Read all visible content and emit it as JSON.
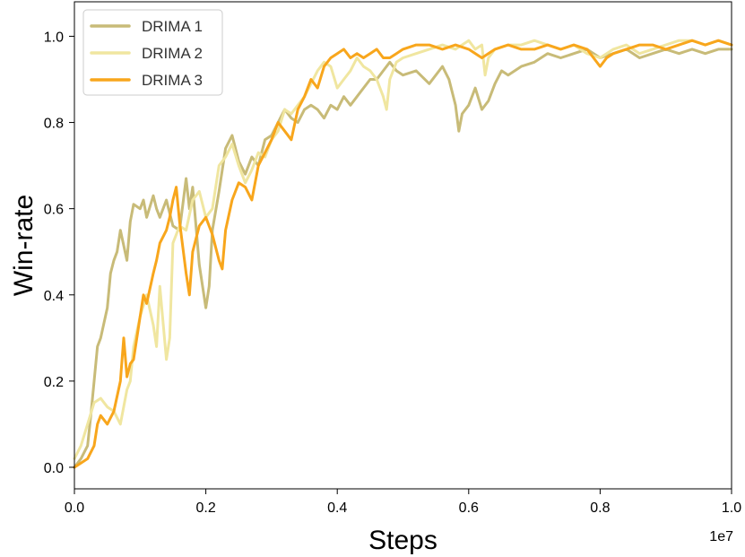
{
  "chart_data": {
    "type": "line",
    "title": "",
    "xlabel": "Steps",
    "ylabel": "Win-rate",
    "x_offset_label": "1e7",
    "xlim": [
      0.0,
      1.0
    ],
    "ylim": [
      -0.05,
      1.08
    ],
    "x_ticks": [
      "0.0",
      "0.2",
      "0.4",
      "0.6",
      "0.8",
      "1.0"
    ],
    "y_ticks": [
      "0.0",
      "0.2",
      "0.4",
      "0.6",
      "0.8",
      "1.0"
    ],
    "x_tick_values": [
      0.0,
      0.2,
      0.4,
      0.6,
      0.8,
      1.0
    ],
    "y_tick_values": [
      0.0,
      0.2,
      0.4,
      0.6,
      0.8,
      1.0
    ],
    "grid": false,
    "legend_position": "top-left",
    "series": [
      {
        "name": "DRIMA 1",
        "color": "#c8bb78",
        "x": [
          0.0,
          0.01,
          0.02,
          0.025,
          0.03,
          0.035,
          0.04,
          0.05,
          0.055,
          0.06,
          0.065,
          0.07,
          0.08,
          0.085,
          0.09,
          0.1,
          0.105,
          0.11,
          0.12,
          0.125,
          0.13,
          0.14,
          0.15,
          0.16,
          0.17,
          0.175,
          0.18,
          0.19,
          0.2,
          0.205,
          0.21,
          0.22,
          0.23,
          0.24,
          0.25,
          0.26,
          0.27,
          0.28,
          0.29,
          0.3,
          0.31,
          0.32,
          0.33,
          0.34,
          0.35,
          0.36,
          0.37,
          0.38,
          0.39,
          0.4,
          0.41,
          0.42,
          0.43,
          0.44,
          0.45,
          0.46,
          0.47,
          0.48,
          0.49,
          0.5,
          0.52,
          0.54,
          0.56,
          0.57,
          0.58,
          0.585,
          0.59,
          0.6,
          0.61,
          0.62,
          0.63,
          0.64,
          0.65,
          0.66,
          0.68,
          0.7,
          0.72,
          0.74,
          0.76,
          0.78,
          0.8,
          0.82,
          0.84,
          0.86,
          0.88,
          0.9,
          0.92,
          0.94,
          0.96,
          0.98,
          1.0
        ],
        "y": [
          0.0,
          0.02,
          0.05,
          0.12,
          0.2,
          0.28,
          0.3,
          0.37,
          0.45,
          0.48,
          0.5,
          0.55,
          0.48,
          0.57,
          0.61,
          0.6,
          0.62,
          0.58,
          0.63,
          0.6,
          0.58,
          0.62,
          0.56,
          0.55,
          0.67,
          0.6,
          0.65,
          0.47,
          0.37,
          0.42,
          0.55,
          0.64,
          0.74,
          0.77,
          0.71,
          0.68,
          0.72,
          0.7,
          0.76,
          0.77,
          0.8,
          0.83,
          0.81,
          0.8,
          0.83,
          0.84,
          0.83,
          0.81,
          0.84,
          0.83,
          0.86,
          0.84,
          0.86,
          0.88,
          0.9,
          0.9,
          0.92,
          0.94,
          0.92,
          0.91,
          0.92,
          0.89,
          0.93,
          0.9,
          0.84,
          0.78,
          0.82,
          0.84,
          0.88,
          0.83,
          0.85,
          0.89,
          0.92,
          0.91,
          0.93,
          0.94,
          0.96,
          0.95,
          0.96,
          0.97,
          0.95,
          0.96,
          0.97,
          0.95,
          0.96,
          0.97,
          0.96,
          0.97,
          0.96,
          0.97,
          0.97
        ]
      },
      {
        "name": "DRIMA 2",
        "color": "#f0e6a0",
        "x": [
          0.0,
          0.01,
          0.02,
          0.03,
          0.04,
          0.05,
          0.06,
          0.07,
          0.08,
          0.085,
          0.09,
          0.1,
          0.11,
          0.12,
          0.125,
          0.13,
          0.14,
          0.145,
          0.15,
          0.16,
          0.17,
          0.18,
          0.19,
          0.2,
          0.21,
          0.22,
          0.23,
          0.24,
          0.25,
          0.26,
          0.27,
          0.28,
          0.29,
          0.3,
          0.31,
          0.32,
          0.33,
          0.34,
          0.35,
          0.36,
          0.37,
          0.38,
          0.39,
          0.4,
          0.41,
          0.42,
          0.43,
          0.44,
          0.45,
          0.46,
          0.47,
          0.475,
          0.48,
          0.49,
          0.5,
          0.52,
          0.54,
          0.56,
          0.58,
          0.6,
          0.61,
          0.62,
          0.625,
          0.63,
          0.64,
          0.66,
          0.68,
          0.7,
          0.72,
          0.74,
          0.76,
          0.78,
          0.8,
          0.82,
          0.84,
          0.86,
          0.88,
          0.9,
          0.92,
          0.94,
          0.96,
          0.98,
          1.0
        ],
        "y": [
          0.02,
          0.05,
          0.1,
          0.15,
          0.16,
          0.14,
          0.13,
          0.1,
          0.18,
          0.2,
          0.28,
          0.35,
          0.4,
          0.33,
          0.28,
          0.42,
          0.25,
          0.3,
          0.52,
          0.56,
          0.55,
          0.62,
          0.64,
          0.58,
          0.6,
          0.7,
          0.72,
          0.75,
          0.7,
          0.66,
          0.69,
          0.73,
          0.72,
          0.76,
          0.78,
          0.83,
          0.82,
          0.84,
          0.86,
          0.89,
          0.92,
          0.94,
          0.93,
          0.88,
          0.9,
          0.92,
          0.95,
          0.93,
          0.92,
          0.9,
          0.86,
          0.83,
          0.9,
          0.94,
          0.95,
          0.96,
          0.97,
          0.98,
          0.97,
          0.99,
          0.97,
          0.98,
          0.91,
          0.95,
          0.97,
          0.98,
          0.98,
          0.99,
          0.98,
          0.97,
          0.98,
          0.96,
          0.95,
          0.97,
          0.98,
          0.96,
          0.97,
          0.98,
          0.99,
          0.99,
          0.98,
          0.99,
          0.98
        ]
      },
      {
        "name": "DRIMA 3",
        "color": "#f8a61c",
        "x": [
          0.0,
          0.01,
          0.02,
          0.03,
          0.035,
          0.04,
          0.05,
          0.06,
          0.07,
          0.075,
          0.08,
          0.085,
          0.09,
          0.1,
          0.105,
          0.11,
          0.12,
          0.125,
          0.13,
          0.14,
          0.145,
          0.15,
          0.155,
          0.16,
          0.17,
          0.175,
          0.18,
          0.185,
          0.19,
          0.2,
          0.21,
          0.22,
          0.225,
          0.23,
          0.24,
          0.25,
          0.26,
          0.27,
          0.28,
          0.29,
          0.3,
          0.31,
          0.32,
          0.33,
          0.34,
          0.35,
          0.36,
          0.37,
          0.38,
          0.39,
          0.4,
          0.41,
          0.42,
          0.43,
          0.44,
          0.45,
          0.46,
          0.47,
          0.48,
          0.49,
          0.5,
          0.52,
          0.54,
          0.56,
          0.58,
          0.6,
          0.62,
          0.64,
          0.66,
          0.68,
          0.7,
          0.72,
          0.74,
          0.76,
          0.78,
          0.8,
          0.81,
          0.82,
          0.84,
          0.86,
          0.88,
          0.9,
          0.92,
          0.94,
          0.96,
          0.98,
          1.0
        ],
        "y": [
          0.0,
          0.01,
          0.02,
          0.05,
          0.1,
          0.12,
          0.1,
          0.13,
          0.2,
          0.3,
          0.21,
          0.24,
          0.25,
          0.35,
          0.4,
          0.38,
          0.45,
          0.48,
          0.52,
          0.55,
          0.58,
          0.62,
          0.65,
          0.57,
          0.45,
          0.4,
          0.5,
          0.53,
          0.56,
          0.58,
          0.54,
          0.48,
          0.46,
          0.55,
          0.62,
          0.66,
          0.65,
          0.62,
          0.7,
          0.73,
          0.76,
          0.8,
          0.78,
          0.76,
          0.83,
          0.86,
          0.9,
          0.88,
          0.93,
          0.95,
          0.96,
          0.97,
          0.95,
          0.96,
          0.95,
          0.96,
          0.97,
          0.95,
          0.95,
          0.96,
          0.97,
          0.98,
          0.98,
          0.97,
          0.98,
          0.97,
          0.95,
          0.97,
          0.98,
          0.97,
          0.97,
          0.98,
          0.97,
          0.98,
          0.97,
          0.93,
          0.95,
          0.96,
          0.97,
          0.98,
          0.98,
          0.97,
          0.98,
          0.99,
          0.98,
          0.99,
          0.98
        ]
      }
    ]
  }
}
